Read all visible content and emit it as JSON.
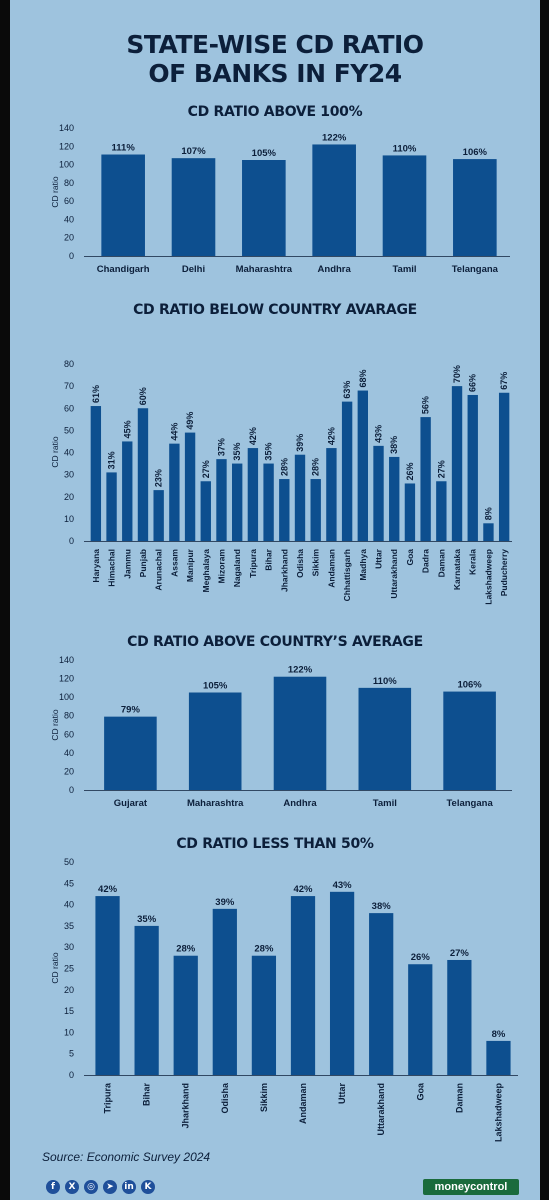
{
  "title": "STATE-WISE CD RATIO\nOF BANKS IN FY24",
  "source": "Source: Economic Survey 2024",
  "brand": "moneycontrol",
  "social_icons": [
    "facebook-icon",
    "x-icon",
    "instagram-icon",
    "telegram-icon",
    "linkedin-icon",
    "koo-icon"
  ],
  "colors": {
    "background": "#9ec3de",
    "bar": "#0d4f8f",
    "text": "#0c1f3a",
    "brand": "#1a6b3c"
  },
  "chart_data": [
    {
      "type": "bar",
      "title": "CD RATIO ABOVE 100%",
      "ylabel": "CD ratio",
      "ylim": [
        0,
        140
      ],
      "yticks": [
        0,
        20,
        40,
        60,
        80,
        100,
        120,
        140
      ],
      "categories": [
        "Chandigarh",
        "Delhi",
        "Maharashtra",
        "Andhra",
        "Tamil",
        "Telangana"
      ],
      "values": [
        111,
        107,
        105,
        122,
        110,
        106
      ],
      "labels": [
        "111%",
        "107%",
        "105%",
        "122%",
        "110%",
        "106%"
      ]
    },
    {
      "type": "bar",
      "title": "CD RATIO BELOW COUNTRY AVARAGE",
      "ylabel": "CD ratio",
      "ylim": [
        0,
        80
      ],
      "yticks": [
        0,
        10,
        20,
        30,
        40,
        50,
        60,
        70,
        80
      ],
      "categories": [
        "Haryana",
        "Himachal",
        "Jammu",
        "Punjab",
        "Arunachal",
        "Assam",
        "Manipur",
        "Meghalaya",
        "Mizoram",
        "Nagaland",
        "Tripura",
        "Bihar",
        "Jharkhand",
        "Odisha",
        "Sikkim",
        "Andaman",
        "Chhattisgarh",
        "Madhya",
        "Uttar",
        "Uttarakhand",
        "Goa",
        "Dadra",
        "Daman",
        "Karnataka",
        "Kerala",
        "Lakshadweep",
        "Puducherry"
      ],
      "values": [
        61,
        31,
        45,
        60,
        23,
        44,
        49,
        27,
        37,
        35,
        42,
        35,
        28,
        39,
        28,
        42,
        63,
        68,
        43,
        38,
        26,
        56,
        27,
        70,
        66,
        8,
        67
      ],
      "labels": [
        "61%",
        "31%",
        "45%",
        "60%",
        "23%",
        "44%",
        "49%",
        "27%",
        "37%",
        "35%",
        "42%",
        "35%",
        "28%",
        "39%",
        "28%",
        "42%",
        "63%",
        "68%",
        "43%",
        "38%",
        "26%",
        "56%",
        "27%",
        "70%",
        "66%",
        "8%",
        "67%"
      ]
    },
    {
      "type": "bar",
      "title": "CD RATIO ABOVE COUNTRY’S AVERAGE",
      "ylabel": "CD ratio",
      "ylim": [
        0,
        140
      ],
      "yticks": [
        0,
        20,
        40,
        60,
        80,
        100,
        120,
        140
      ],
      "categories": [
        "Gujarat",
        "Maharashtra",
        "Andhra",
        "Tamil",
        "Telangana"
      ],
      "values": [
        79,
        105,
        122,
        110,
        106
      ],
      "labels": [
        "79%",
        "105%",
        "122%",
        "110%",
        "106%"
      ]
    },
    {
      "type": "bar",
      "title": "CD RATIO LESS THAN 50%",
      "ylabel": "CD ratio",
      "ylim": [
        0,
        50
      ],
      "yticks": [
        0,
        5,
        10,
        15,
        20,
        25,
        30,
        35,
        40,
        45,
        50
      ],
      "categories": [
        "Tripura",
        "Bihar",
        "Jharkhand",
        "Odisha",
        "Sikkim",
        "Andaman",
        "Uttar",
        "Uttarakhand",
        "Goa",
        "Daman",
        "Lakshadweep"
      ],
      "values": [
        42,
        35,
        28,
        39,
        28,
        42,
        43,
        38,
        26,
        27,
        8
      ],
      "labels": [
        "42%",
        "35%",
        "28%",
        "39%",
        "28%",
        "42%",
        "43%",
        "38%",
        "26%",
        "27%",
        "8%"
      ]
    }
  ]
}
